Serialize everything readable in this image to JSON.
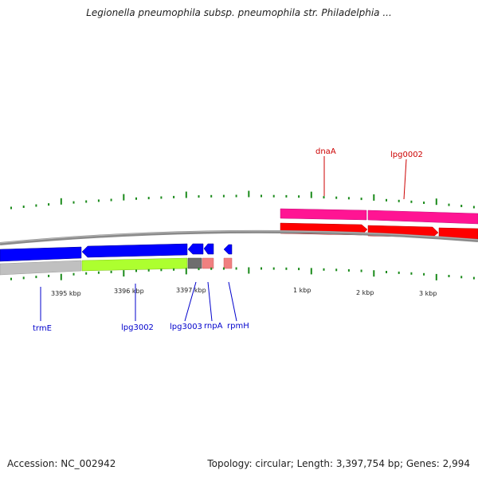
{
  "title": "Legionella pneumophila subsp. pneumophila str. Philadelphia ...",
  "footer": {
    "accession": "Accession: NC_002942",
    "stats": "Topology: circular; Length: 3,397,754 bp; Genes: 2,994"
  },
  "scale_labels": [
    "3395 kbp",
    "3396 kbp",
    "3397 kbp",
    "1 kbp",
    "2 kbp",
    "3 kbp"
  ],
  "genes": [
    {
      "name": "trmE",
      "strand": "reverse",
      "color": "#0000cc"
    },
    {
      "name": "lpg3002",
      "strand": "reverse",
      "color": "#0000cc"
    },
    {
      "name": "lpg3003",
      "strand": "reverse",
      "color": "#0000cc"
    },
    {
      "name": "rnpA",
      "strand": "reverse",
      "color": "#0000cc"
    },
    {
      "name": "rpmH",
      "strand": "reverse",
      "color": "#0000cc"
    },
    {
      "name": "dnaA",
      "strand": "forward",
      "color": "#cc0000"
    },
    {
      "name": "lpg0002",
      "strand": "forward",
      "color": "#cc0000"
    }
  ],
  "colors": {
    "forward_cds": "#ff0000",
    "forward_feature": "#ff1493",
    "reverse_cds": "#0000ff",
    "reverse_feature_green": "#adff2f",
    "reverse_feature_grey": "#c0c0c0",
    "backbone": "#7f7f7f",
    "tick": "#1a8a1a"
  }
}
